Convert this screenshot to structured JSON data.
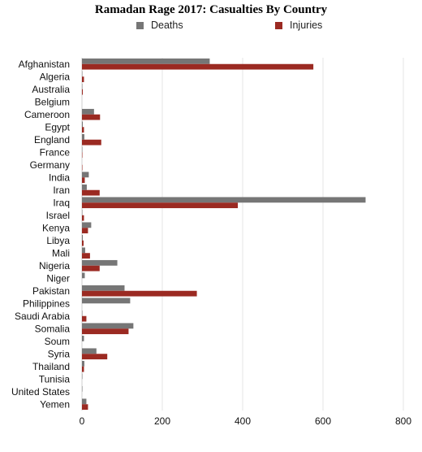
{
  "chart_data": {
    "type": "bar",
    "orientation": "horizontal",
    "title": "Ramadan Rage 2017: Casualties By Country",
    "xlim": [
      0,
      800
    ],
    "xticks": [
      "0",
      "200",
      "400",
      "600",
      "800"
    ],
    "grid": true,
    "legend_position": "top",
    "categories": [
      "Afghanistan",
      "Algeria",
      "Australia",
      "Belgium",
      "Cameroon",
      "Egypt",
      "England",
      "France",
      "Germany",
      "India",
      "Iran",
      "Iraq",
      "Israel",
      "Kenya",
      "Libya",
      "Mali",
      "Nigeria",
      "Niger",
      "Pakistan",
      "Philippines",
      "Saudi Arabia",
      "Somalia",
      "Soum",
      "Syria",
      "Thailand",
      "Tunisia",
      "United States",
      "Yemen"
    ],
    "series": [
      {
        "name": "Deaths",
        "color": "#767676",
        "values": [
          318,
          1,
          1,
          0,
          30,
          2,
          6,
          1,
          0,
          17,
          12,
          706,
          1,
          23,
          2,
          8,
          88,
          7,
          106,
          120,
          1,
          128,
          5,
          36,
          6,
          1,
          1,
          11
        ]
      },
      {
        "name": "Injuries",
        "color": "#9b2a22",
        "values": [
          576,
          5,
          2,
          0,
          45,
          5,
          48,
          1,
          1,
          7,
          44,
          388,
          5,
          15,
          4,
          20,
          44,
          0,
          286,
          0,
          11,
          116,
          0,
          63,
          5,
          0,
          0,
          15
        ]
      }
    ]
  }
}
